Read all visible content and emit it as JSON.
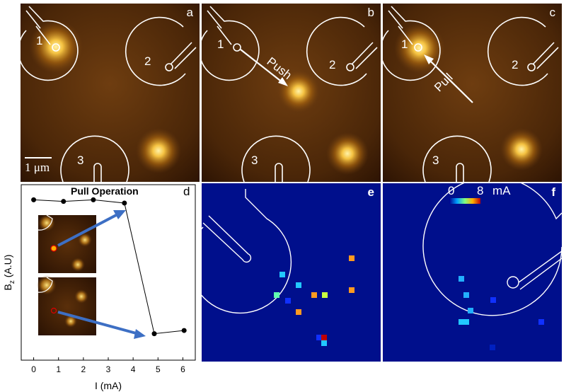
{
  "panels": {
    "a": {
      "label": "a",
      "electrodes": [
        "1",
        "2",
        "3"
      ],
      "scale_bar": "1 μm"
    },
    "b": {
      "label": "b",
      "electrodes": [
        "1",
        "2",
        "3"
      ],
      "arrow_text": "Push"
    },
    "c": {
      "label": "c",
      "electrodes": [
        "1",
        "2",
        "3"
      ],
      "arrow_text": "Pull"
    },
    "d": {
      "label": "d",
      "title": "Pull Operation"
    },
    "e": {
      "label": "e"
    },
    "f": {
      "label": "f",
      "colorbar": {
        "min": "0",
        "max": "8",
        "unit": "mA"
      }
    }
  },
  "colors": {
    "heatmap_bg": "#2b1303",
    "map_bg": "#000f8c",
    "contour": "#ffffff",
    "spot": "#ffd75a",
    "series": "#000000",
    "arrow": "#3d6fc4"
  },
  "chart_data": {
    "type": "line",
    "title": "Pull Operation",
    "xlabel": "I (mA)",
    "ylabel": "B_z (A.U)",
    "xlim": [
      -0.5,
      6.5
    ],
    "xticks": [
      "0",
      "1",
      "2",
      "3",
      "4",
      "5",
      "6"
    ],
    "x": [
      0,
      1.2,
      2.4,
      3.65,
      4.85,
      6.05
    ],
    "y": [
      0.95,
      0.94,
      0.95,
      0.93,
      0.12,
      0.14
    ],
    "grid": false
  }
}
